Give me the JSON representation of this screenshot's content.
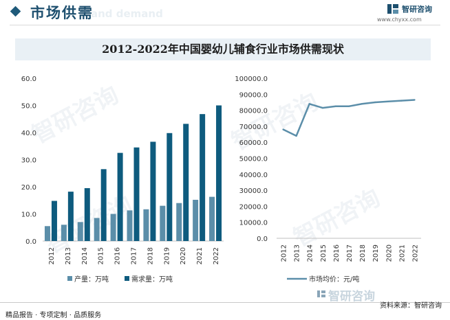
{
  "header": {
    "title": "市场供需",
    "ghost_text": "and demand",
    "brand_name": "智研咨询",
    "brand_url": "www.chyxx.com"
  },
  "chart_title": "2012-2022年中国婴幼儿辅食行业市场供需现状",
  "footer": {
    "left": "精品报告 · 专项定制 · 品质服务",
    "right": "资料来源：智研咨询"
  },
  "colors": {
    "production": "#5b8ea9",
    "demand": "#0e5b7e",
    "price_line": "#5b8ea9",
    "title_box": "#e9f0f5",
    "brand": "#1d4f6e"
  },
  "chart_data": [
    {
      "type": "bar",
      "categories": [
        "2012",
        "2013",
        "2014",
        "2015",
        "2016",
        "2017",
        "2018",
        "2019",
        "2020",
        "2021",
        "2022"
      ],
      "series": [
        {
          "name": "产量：万吨",
          "values": [
            5.5,
            6.0,
            7.0,
            8.5,
            10.0,
            11.3,
            11.7,
            13.0,
            14.0,
            15.2,
            16.3
          ]
        },
        {
          "name": "需求量：万吨",
          "values": [
            14.8,
            18.2,
            19.5,
            26.5,
            32.5,
            34.5,
            36.6,
            39.8,
            43.2,
            46.8,
            50.0
          ]
        }
      ],
      "yticks": [
        "0.0",
        "10.0",
        "20.0",
        "30.0",
        "40.0",
        "50.0",
        "60.0"
      ],
      "ylim": [
        0,
        60
      ],
      "legend_position": "bottom"
    },
    {
      "type": "line",
      "categories": [
        "2012",
        "2013",
        "2014",
        "2015",
        "2016",
        "2017",
        "2018",
        "2019",
        "2020",
        "2021",
        "2022"
      ],
      "series": [
        {
          "name": "市场均价：元/吨",
          "values": [
            68000,
            64000,
            84000,
            81500,
            82500,
            82500,
            84000,
            85000,
            85500,
            86000,
            86500
          ]
        }
      ],
      "yticks": [
        "0.0",
        "10000.0",
        "20000.0",
        "30000.0",
        "40000.0",
        "50000.0",
        "60000.0",
        "70000.0",
        "80000.0",
        "90000.0",
        "100000.0"
      ],
      "ylim": [
        0,
        100000
      ],
      "legend_position": "bottom"
    }
  ]
}
